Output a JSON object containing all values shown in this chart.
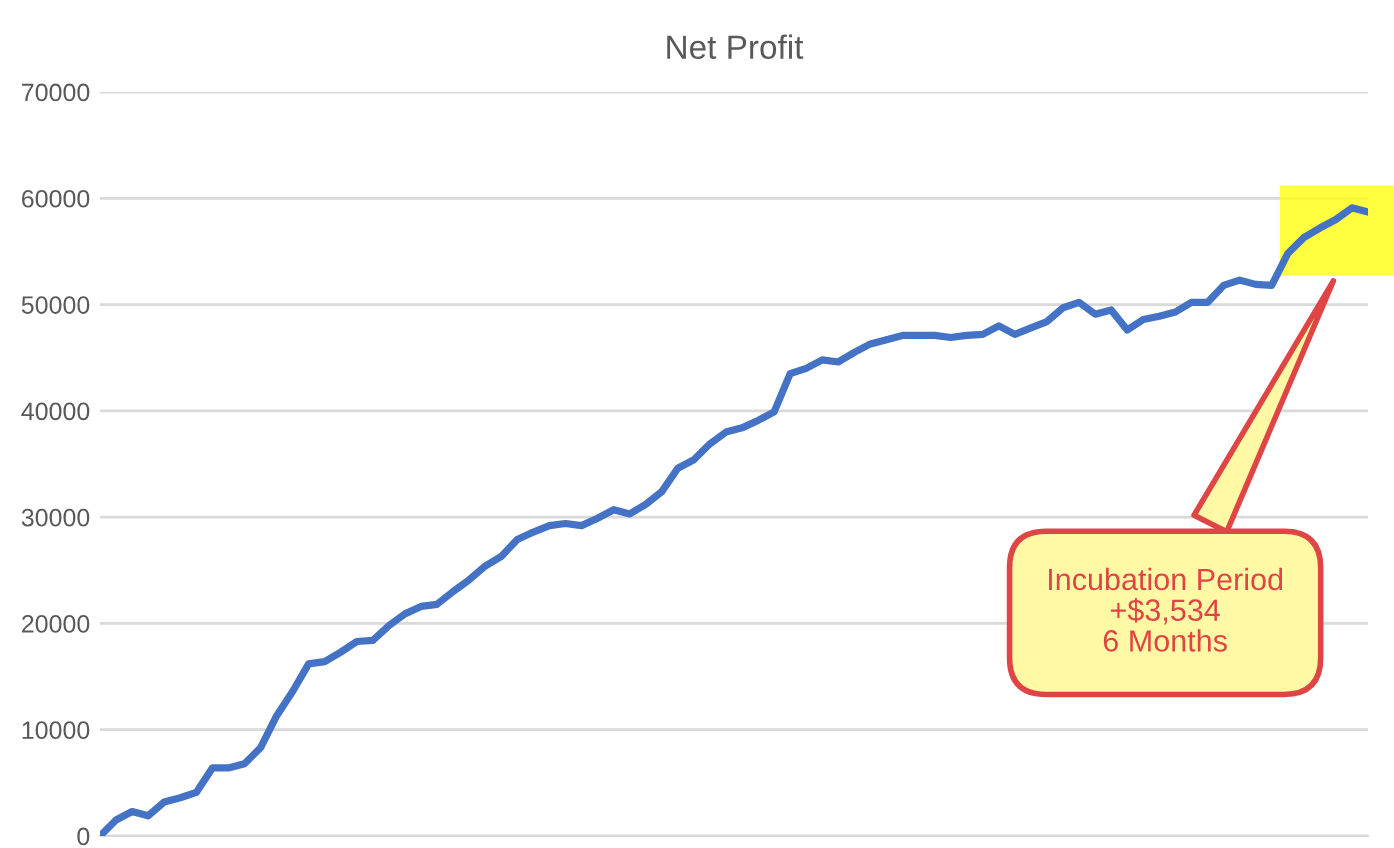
{
  "chart_data": {
    "type": "line",
    "title": "Net Profit",
    "categories": [
      null,
      null,
      null,
      null,
      null,
      null,
      null,
      null,
      null,
      null,
      null,
      null,
      null,
      null,
      null,
      null,
      null,
      null,
      null,
      null,
      null,
      null,
      null,
      null,
      null,
      null,
      null,
      null,
      null,
      null,
      null,
      null,
      null,
      null,
      null,
      null,
      null,
      null,
      null,
      null,
      null,
      null,
      null,
      null,
      null,
      null,
      null,
      null,
      null,
      null,
      null,
      null,
      null,
      null,
      null,
      null,
      null,
      null,
      null,
      null,
      null,
      null,
      null,
      null,
      null,
      null,
      null,
      null,
      null,
      null,
      null,
      null,
      null,
      null,
      null,
      null,
      null,
      null,
      null,
      null
    ],
    "series": [
      {
        "color": "#4472c4",
        "values": [
          0,
          1500,
          2300,
          1900,
          3200,
          3600,
          4100,
          6400,
          6400,
          6800,
          8300,
          11300,
          13600,
          16200,
          16400,
          17300,
          18300,
          18400,
          19800,
          20900,
          21600,
          21800,
          23000,
          24100,
          25400,
          26300,
          27900,
          28600,
          29200,
          29400,
          29200,
          29900,
          30700,
          30300,
          31200,
          32400,
          34600,
          35400,
          36900,
          38000,
          38400,
          39100,
          39900,
          43500,
          44000,
          44800,
          44600,
          45500,
          46300,
          46700,
          47100,
          47100,
          47100,
          46900,
          47100,
          47200,
          48000,
          47200,
          47800,
          48400,
          49700,
          50200,
          49100,
          49500,
          47600,
          48600,
          48900,
          49300,
          50200,
          50200,
          51800,
          52300,
          51900,
          51800,
          54800,
          56300,
          57200,
          58000,
          59100,
          58700
        ]
      }
    ],
    "ylim": [
      0,
      70000
    ],
    "yticks": [
      0,
      10000,
      20000,
      30000,
      40000,
      50000,
      60000,
      70000
    ],
    "grid": "y",
    "tick_labels": "y",
    "annotations": [
      "Incubation Period\n+$3,534\n6 Months"
    ]
  }
}
